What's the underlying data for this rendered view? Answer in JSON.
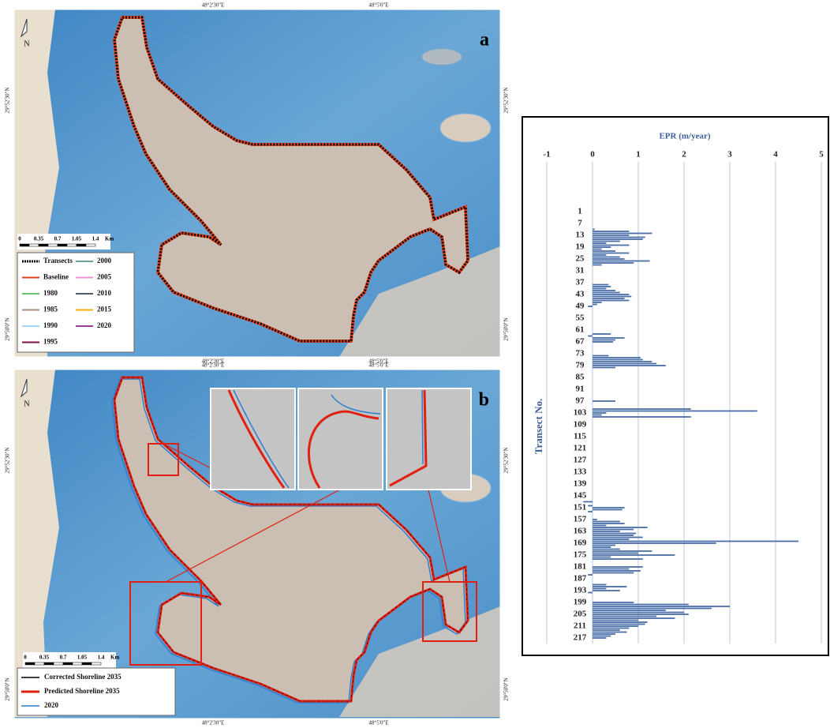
{
  "chart_data": {
    "type": "hbar",
    "title": "EPR (m/year)",
    "y_label": "Transect No.",
    "color": "#4a6ea8",
    "grid": true,
    "xlim": [
      -1,
      5
    ],
    "xticks": [
      -1,
      0,
      1,
      2,
      3,
      4,
      5
    ],
    "categories": [
      "1",
      null,
      null,
      null,
      null,
      null,
      "7",
      null,
      null,
      null,
      null,
      null,
      "13",
      null,
      null,
      null,
      null,
      null,
      "19",
      null,
      null,
      null,
      null,
      null,
      "25",
      null,
      null,
      null,
      null,
      null,
      "31",
      null,
      null,
      null,
      null,
      null,
      "37",
      null,
      null,
      null,
      null,
      null,
      "43",
      null,
      null,
      null,
      null,
      null,
      "49",
      null,
      null,
      null,
      null,
      null,
      "55",
      null,
      null,
      null,
      null,
      null,
      "61",
      null,
      null,
      null,
      null,
      null,
      "67",
      null,
      null,
      null,
      null,
      null,
      "73",
      null,
      null,
      null,
      null,
      null,
      "79",
      null,
      null,
      null,
      null,
      null,
      "85",
      null,
      null,
      null,
      null,
      null,
      "91",
      null,
      null,
      null,
      null,
      null,
      "97",
      null,
      null,
      null,
      null,
      null,
      "103",
      null,
      null,
      null,
      null,
      null,
      "109",
      null,
      null,
      null,
      null,
      null,
      "115",
      null,
      null,
      null,
      null,
      null,
      "121",
      null,
      null,
      null,
      null,
      null,
      "127",
      null,
      null,
      null,
      null,
      null,
      "133",
      null,
      null,
      null,
      null,
      null,
      "139",
      null,
      null,
      null,
      null,
      null,
      "145",
      null,
      null,
      null,
      null,
      null,
      "151",
      null,
      null,
      null,
      null,
      null,
      "157",
      null,
      null,
      null,
      null,
      null,
      "163",
      null,
      null,
      null,
      null,
      null,
      "169",
      null,
      null,
      null,
      null,
      null,
      "175",
      null,
      null,
      null,
      null,
      null,
      "181",
      null,
      null,
      null,
      null,
      null,
      "187",
      null,
      null,
      null,
      null,
      null,
      "193",
      null,
      null,
      null,
      null,
      null,
      "199",
      null,
      null,
      null,
      null,
      null,
      "205",
      null,
      null,
      null,
      null,
      null,
      "211",
      null,
      null,
      null,
      null,
      null,
      "217"
    ],
    "values": [
      0,
      0,
      0,
      0,
      0,
      0,
      0,
      0,
      0,
      0.05,
      0.8,
      1.3,
      0.8,
      1.15,
      1.1,
      0.6,
      0.3,
      0.8,
      0.4,
      0.2,
      0.5,
      0.8,
      0.3,
      0.6,
      0.7,
      1.25,
      0.9,
      0.2,
      0,
      0,
      0,
      0,
      0,
      0,
      0,
      0,
      0,
      0.35,
      0.4,
      0.3,
      0.5,
      0.6,
      0.8,
      0.85,
      0.7,
      0.8,
      0.2,
      0.1,
      -0.1,
      0,
      0,
      0,
      0,
      0,
      0,
      0,
      0,
      0,
      0,
      0,
      0,
      0,
      0.4,
      -0.1,
      0.7,
      0.5,
      0.45,
      0,
      0,
      0,
      0,
      0,
      0,
      0.35,
      1.05,
      1.1,
      1.3,
      1.4,
      1.6,
      0.5,
      0,
      0,
      0,
      0,
      0,
      0,
      0,
      0,
      0,
      0,
      0,
      0,
      0,
      0,
      0,
      0,
      0.5,
      0,
      0,
      0,
      2.15,
      3.6,
      0.3,
      0.2,
      2.15,
      0,
      0,
      0,
      0,
      0,
      0,
      0,
      0,
      0,
      0,
      0,
      0,
      0,
      0,
      0,
      0,
      0,
      0,
      0,
      0,
      0,
      0,
      0,
      0,
      0,
      0,
      0,
      0,
      0,
      0,
      0,
      0,
      0,
      0,
      0,
      0,
      0,
      0,
      0,
      0,
      0,
      0,
      -0.2,
      0,
      -0.1,
      0.7,
      0.65,
      -0.1,
      0,
      0,
      0,
      0.1,
      0.6,
      0.7,
      0.3,
      1.2,
      0.9,
      0.6,
      0.95,
      0.9,
      1.1,
      0.8,
      4.5,
      2.7,
      0.5,
      0.4,
      0.6,
      1.3,
      1.0,
      1.8,
      0.4,
      1.1,
      0,
      0,
      0,
      1.1,
      0.8,
      1.05,
      0.9,
      -0.1,
      0,
      0,
      0,
      0,
      0.3,
      0.75,
      0.3,
      0.6,
      -0.1,
      0,
      0,
      0,
      0,
      0.9,
      2.1,
      3.0,
      2.6,
      1.6,
      2.0,
      2.1,
      1.4,
      1.8,
      1.0,
      1.2,
      1.15,
      1.0,
      0.8,
      0.6,
      0.75,
      0.5,
      0.4,
      0.3
    ]
  },
  "maps": {
    "a": {
      "label": "a",
      "north": "N",
      "scale": [
        "0",
        "0.35",
        "0.7",
        "1.05",
        "1.4",
        "Km"
      ],
      "lon_labels": [
        "48°2'30\"E",
        "48°5'0\"E"
      ],
      "lat_labels": [
        "29°52'30\"N",
        "29°50'0\"N"
      ],
      "legend": [
        {
          "name": "Transects",
          "color": "#000000"
        },
        {
          "name": "Baseline",
          "color": "#e0401c"
        },
        {
          "name": "1980",
          "color": "#6cc46c"
        },
        {
          "name": "1985",
          "color": "#a8927e"
        },
        {
          "name": "1990",
          "color": "#9ed8f2"
        },
        {
          "name": "1995",
          "color": "#7a1040"
        },
        {
          "name": "2000",
          "color": "#6e9fa0"
        },
        {
          "name": "2005",
          "color": "#ef8fcf"
        },
        {
          "name": "2010",
          "color": "#4e6070"
        },
        {
          "name": "2015",
          "color": "#f2b200"
        },
        {
          "name": "2020",
          "color": "#9c3ea0"
        }
      ]
    },
    "b": {
      "label": "b",
      "north": "N",
      "scale": [
        "0",
        "0.35",
        "0.7",
        "1.05",
        "1.4",
        "Km"
      ],
      "lon_labels": [
        "48°2'30\"E",
        "48°5'0\"E"
      ],
      "lat_labels": [
        "29°52'30\"N",
        "29°50'0\"N"
      ],
      "legend": [
        {
          "name": "Corrected Shoreline 2035",
          "color": "#000000"
        },
        {
          "name": "Predicted Shoreline 2035",
          "color": "#e02010"
        },
        {
          "name": "2020",
          "color": "#2f7fd0"
        }
      ]
    }
  }
}
